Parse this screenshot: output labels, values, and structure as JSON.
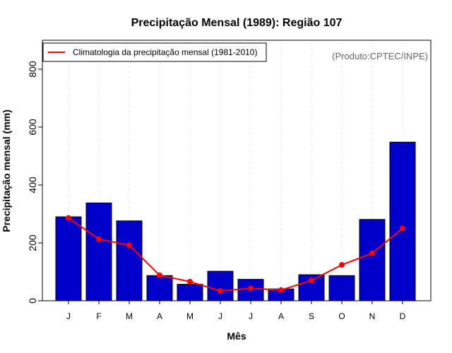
{
  "chart_data": {
    "type": "bar",
    "title": "Precipitação Mensal (1989): Região 107",
    "xlabel": "Mês",
    "ylabel": "Precipitação mensal (mm)",
    "credit": "(Produto:CPTEC/INPE)",
    "categories": [
      "J",
      "F",
      "M",
      "A",
      "M",
      "J",
      "J",
      "A",
      "S",
      "O",
      "N",
      "D"
    ],
    "ylim": [
      0,
      900
    ],
    "yticks": [
      0,
      200,
      400,
      600,
      800
    ],
    "grid": "vertical dotted",
    "legend_position": "top-left",
    "series": [
      {
        "name": "Precipitação mensal (1989)",
        "kind": "bar",
        "color": "#0000cd",
        "values": [
          290,
          338,
          276,
          87,
          57,
          102,
          74,
          41,
          90,
          87,
          281,
          548
        ]
      },
      {
        "name": "Climatologia da precipitação mensal (1981-2010)",
        "kind": "line",
        "color": "#ff0000",
        "values": [
          286,
          213,
          192,
          88,
          66,
          34,
          43,
          37,
          70,
          124,
          164,
          250
        ]
      }
    ]
  }
}
